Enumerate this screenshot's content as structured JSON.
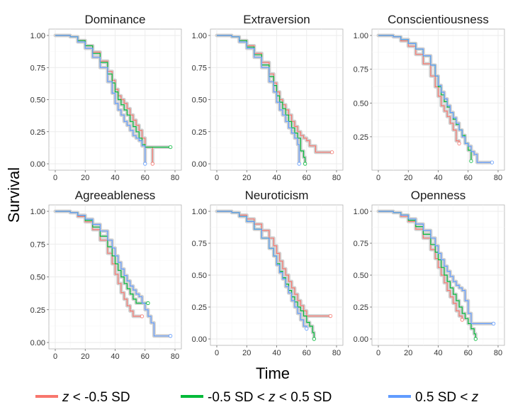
{
  "xlabel": "Time",
  "ylabel": "Survival",
  "colors": {
    "low": "#f8766d",
    "mid": "#00ba38",
    "high": "#619cff",
    "censor_band": "#cccccc"
  },
  "legend": [
    {
      "key": "low",
      "pre": "",
      "ital": "z",
      "post": " < -0.5 SD"
    },
    {
      "key": "mid",
      "pre": "-0.5 SD < ",
      "ital": "z",
      "post": " < 0.5 SD"
    },
    {
      "key": "high",
      "pre": "0.5 SD < ",
      "ital": "z",
      "post": ""
    }
  ],
  "chart_data": [
    {
      "type": "line",
      "title": "Dominance",
      "xlim": [
        0,
        80
      ],
      "ylim": [
        0,
        1
      ],
      "xticks": [
        0,
        20,
        40,
        60,
        80
      ],
      "yticks": [
        "0.00",
        "0.25",
        "0.50",
        "0.75",
        "1.00"
      ],
      "series": [
        {
          "key": "low",
          "x": [
            0,
            10,
            15,
            20,
            25,
            30,
            35,
            38,
            40,
            42,
            44,
            46,
            48,
            50,
            52,
            54,
            56,
            58,
            60,
            62,
            64,
            65
          ],
          "y": [
            1,
            0.99,
            0.96,
            0.92,
            0.87,
            0.8,
            0.72,
            0.65,
            0.58,
            0.53,
            0.5,
            0.47,
            0.43,
            0.38,
            0.34,
            0.3,
            0.26,
            0.2,
            0.13,
            0.13,
            0.13,
            0
          ]
        },
        {
          "key": "mid",
          "x": [
            0,
            10,
            15,
            20,
            25,
            30,
            35,
            38,
            40,
            42,
            44,
            46,
            48,
            50,
            52,
            54,
            56,
            58,
            60,
            66,
            72,
            77
          ],
          "y": [
            1,
            0.99,
            0.96,
            0.92,
            0.86,
            0.79,
            0.7,
            0.63,
            0.56,
            0.5,
            0.46,
            0.42,
            0.38,
            0.33,
            0.29,
            0.25,
            0.2,
            0.15,
            0.13,
            0.13,
            0.13,
            0.13
          ]
        },
        {
          "key": "high",
          "x": [
            0,
            10,
            15,
            20,
            25,
            30,
            35,
            38,
            40,
            42,
            44,
            46,
            48,
            50,
            52,
            54,
            56,
            58,
            60
          ],
          "y": [
            1,
            0.99,
            0.95,
            0.9,
            0.83,
            0.75,
            0.64,
            0.55,
            0.47,
            0.42,
            0.38,
            0.33,
            0.3,
            0.26,
            0.22,
            0.2,
            0.18,
            0.14,
            0
          ]
        }
      ]
    },
    {
      "type": "line",
      "title": "Extraversion",
      "xlim": [
        0,
        80
      ],
      "ylim": [
        0,
        1
      ],
      "xticks": [
        0,
        20,
        40,
        60,
        80
      ],
      "yticks": [
        "0.00",
        "0.25",
        "0.50",
        "0.75",
        "1.00"
      ],
      "series": [
        {
          "key": "low",
          "x": [
            0,
            10,
            15,
            20,
            25,
            30,
            35,
            38,
            40,
            42,
            44,
            46,
            48,
            50,
            52,
            54,
            56,
            58,
            60,
            62,
            66,
            72,
            77
          ],
          "y": [
            1,
            0.99,
            0.96,
            0.92,
            0.86,
            0.79,
            0.7,
            0.63,
            0.56,
            0.5,
            0.46,
            0.42,
            0.38,
            0.33,
            0.29,
            0.25,
            0.22,
            0.2,
            0.18,
            0.14,
            0.09,
            0.09,
            0.09
          ]
        },
        {
          "key": "mid",
          "x": [
            0,
            10,
            15,
            20,
            25,
            30,
            35,
            38,
            40,
            42,
            44,
            46,
            48,
            50,
            52,
            54,
            56,
            58,
            59
          ],
          "y": [
            1,
            0.99,
            0.96,
            0.91,
            0.85,
            0.77,
            0.68,
            0.61,
            0.53,
            0.48,
            0.43,
            0.38,
            0.33,
            0.28,
            0.24,
            0.2,
            0.1,
            0.05,
            0
          ]
        },
        {
          "key": "high",
          "x": [
            0,
            10,
            15,
            20,
            25,
            30,
            35,
            38,
            40,
            42,
            44,
            46,
            48,
            50,
            52,
            54,
            55
          ],
          "y": [
            1,
            0.99,
            0.95,
            0.9,
            0.83,
            0.75,
            0.64,
            0.56,
            0.48,
            0.42,
            0.38,
            0.33,
            0.28,
            0.24,
            0.2,
            0.15,
            0
          ]
        }
      ]
    },
    {
      "type": "line",
      "title": "Conscientiousness",
      "xlim": [
        0,
        80
      ],
      "ylim": [
        0.05,
        1
      ],
      "xticks": [
        0,
        20,
        40,
        60,
        80
      ],
      "yticks": [
        "0.25",
        "0.50",
        "0.75",
        "1.00"
      ],
      "series": [
        {
          "key": "low",
          "x": [
            0,
            10,
            15,
            20,
            25,
            30,
            35,
            38,
            40,
            42,
            44,
            46,
            48,
            50,
            52,
            54
          ],
          "y": [
            1,
            0.99,
            0.96,
            0.92,
            0.86,
            0.79,
            0.7,
            0.62,
            0.55,
            0.48,
            0.44,
            0.4,
            0.35,
            0.3,
            0.22,
            0.2
          ]
        },
        {
          "key": "mid",
          "x": [
            0,
            10,
            15,
            20,
            25,
            30,
            35,
            38,
            40,
            42,
            44,
            46,
            48,
            50,
            52,
            54,
            56,
            58,
            60,
            62
          ],
          "y": [
            1,
            0.99,
            0.97,
            0.94,
            0.9,
            0.85,
            0.78,
            0.7,
            0.62,
            0.56,
            0.51,
            0.47,
            0.43,
            0.38,
            0.34,
            0.3,
            0.26,
            0.2,
            0.15,
            0.07
          ]
        },
        {
          "key": "high",
          "x": [
            0,
            10,
            15,
            20,
            25,
            30,
            35,
            38,
            40,
            42,
            44,
            46,
            48,
            50,
            52,
            54,
            56,
            58,
            60,
            62,
            64,
            66,
            70,
            76
          ],
          "y": [
            1,
            0.99,
            0.97,
            0.94,
            0.9,
            0.85,
            0.78,
            0.7,
            0.63,
            0.58,
            0.53,
            0.48,
            0.43,
            0.39,
            0.35,
            0.3,
            0.25,
            0.2,
            0.18,
            0.14,
            0.12,
            0.06,
            0.06,
            0.06
          ]
        }
      ]
    },
    {
      "type": "line",
      "title": "Agreeableness",
      "xlim": [
        0,
        80
      ],
      "ylim": [
        0,
        1
      ],
      "xticks": [
        0,
        20,
        40,
        60,
        80
      ],
      "yticks": [
        "0.00",
        "0.25",
        "0.50",
        "0.75",
        "1.00"
      ],
      "series": [
        {
          "key": "low",
          "x": [
            0,
            10,
            15,
            20,
            25,
            30,
            35,
            38,
            40,
            42,
            44,
            46,
            48,
            50,
            52,
            54,
            56,
            58
          ],
          "y": [
            1,
            0.99,
            0.96,
            0.92,
            0.86,
            0.78,
            0.68,
            0.6,
            0.52,
            0.45,
            0.38,
            0.33,
            0.28,
            0.24,
            0.2,
            0.2,
            0.2,
            0.2
          ]
        },
        {
          "key": "mid",
          "x": [
            0,
            10,
            15,
            20,
            25,
            30,
            35,
            38,
            40,
            42,
            44,
            46,
            48,
            50,
            52,
            54,
            56,
            58,
            60,
            62
          ],
          "y": [
            1,
            0.99,
            0.97,
            0.93,
            0.88,
            0.81,
            0.73,
            0.66,
            0.6,
            0.55,
            0.5,
            0.45,
            0.41,
            0.37,
            0.33,
            0.3,
            0.3,
            0.3,
            0.3,
            0.3
          ]
        },
        {
          "key": "high",
          "x": [
            0,
            10,
            15,
            20,
            25,
            30,
            35,
            38,
            40,
            42,
            44,
            46,
            48,
            50,
            52,
            54,
            56,
            58,
            60,
            62,
            64,
            66,
            70,
            77
          ],
          "y": [
            1,
            0.99,
            0.97,
            0.94,
            0.9,
            0.85,
            0.78,
            0.72,
            0.66,
            0.61,
            0.56,
            0.51,
            0.47,
            0.43,
            0.4,
            0.37,
            0.35,
            0.3,
            0.25,
            0.2,
            0.15,
            0.05,
            0.05,
            0.05
          ]
        }
      ]
    },
    {
      "type": "line",
      "title": "Neuroticism",
      "xlim": [
        0,
        80
      ],
      "ylim": [
        0,
        1
      ],
      "xticks": [
        0,
        20,
        40,
        60,
        80
      ],
      "yticks": [
        "0.00",
        "0.25",
        "0.50",
        "0.75",
        "1.00"
      ],
      "series": [
        {
          "key": "low",
          "x": [
            0,
            10,
            15,
            20,
            25,
            30,
            35,
            38,
            40,
            42,
            44,
            46,
            48,
            50,
            52,
            54,
            56,
            58,
            60,
            64,
            70,
            76
          ],
          "y": [
            1,
            0.99,
            0.97,
            0.94,
            0.9,
            0.85,
            0.79,
            0.73,
            0.67,
            0.61,
            0.55,
            0.5,
            0.45,
            0.4,
            0.35,
            0.3,
            0.26,
            0.22,
            0.18,
            0.18,
            0.18,
            0.18
          ]
        },
        {
          "key": "mid",
          "x": [
            0,
            10,
            15,
            20,
            25,
            30,
            35,
            38,
            40,
            42,
            44,
            46,
            48,
            50,
            52,
            54,
            56,
            58,
            60,
            62,
            64,
            65
          ],
          "y": [
            1,
            0.99,
            0.96,
            0.92,
            0.86,
            0.79,
            0.71,
            0.65,
            0.59,
            0.53,
            0.48,
            0.43,
            0.38,
            0.33,
            0.29,
            0.25,
            0.22,
            0.18,
            0.13,
            0.1,
            0.05,
            0
          ]
        },
        {
          "key": "high",
          "x": [
            0,
            10,
            15,
            20,
            25,
            30,
            35,
            38,
            40,
            42,
            44,
            46,
            48,
            50,
            52,
            54,
            56,
            58,
            60
          ],
          "y": [
            1,
            0.99,
            0.96,
            0.92,
            0.86,
            0.79,
            0.71,
            0.65,
            0.58,
            0.52,
            0.47,
            0.41,
            0.36,
            0.3,
            0.25,
            0.2,
            0.15,
            0.1,
            0.08
          ]
        }
      ]
    },
    {
      "type": "line",
      "title": "Openness",
      "xlim": [
        0,
        80
      ],
      "ylim": [
        0,
        1
      ],
      "xticks": [
        0,
        20,
        40,
        60,
        80
      ],
      "yticks": [
        "0.00",
        "0.25",
        "0.50",
        "0.75",
        "1.00"
      ],
      "series": [
        {
          "key": "low",
          "x": [
            0,
            10,
            15,
            20,
            25,
            30,
            35,
            38,
            40,
            42,
            44,
            46,
            48,
            50,
            52,
            54,
            56
          ],
          "y": [
            1,
            0.99,
            0.96,
            0.92,
            0.86,
            0.79,
            0.7,
            0.63,
            0.56,
            0.5,
            0.44,
            0.38,
            0.33,
            0.28,
            0.22,
            0.18,
            0.15
          ]
        },
        {
          "key": "mid",
          "x": [
            0,
            10,
            15,
            20,
            25,
            30,
            35,
            38,
            40,
            42,
            44,
            46,
            48,
            50,
            52,
            54,
            56,
            58,
            60,
            62,
            64,
            65
          ],
          "y": [
            1,
            0.99,
            0.97,
            0.93,
            0.88,
            0.82,
            0.74,
            0.68,
            0.62,
            0.56,
            0.5,
            0.45,
            0.4,
            0.35,
            0.3,
            0.25,
            0.2,
            0.16,
            0.12,
            0.08,
            0.04,
            0
          ]
        },
        {
          "key": "high",
          "x": [
            0,
            10,
            15,
            20,
            25,
            30,
            35,
            38,
            40,
            42,
            44,
            46,
            48,
            50,
            52,
            54,
            56,
            58,
            60,
            62,
            66,
            72,
            77
          ],
          "y": [
            1,
            0.99,
            0.97,
            0.94,
            0.9,
            0.85,
            0.79,
            0.73,
            0.67,
            0.62,
            0.57,
            0.53,
            0.49,
            0.45,
            0.42,
            0.4,
            0.38,
            0.3,
            0.2,
            0.12,
            0.12,
            0.12,
            0.12
          ]
        }
      ]
    }
  ]
}
